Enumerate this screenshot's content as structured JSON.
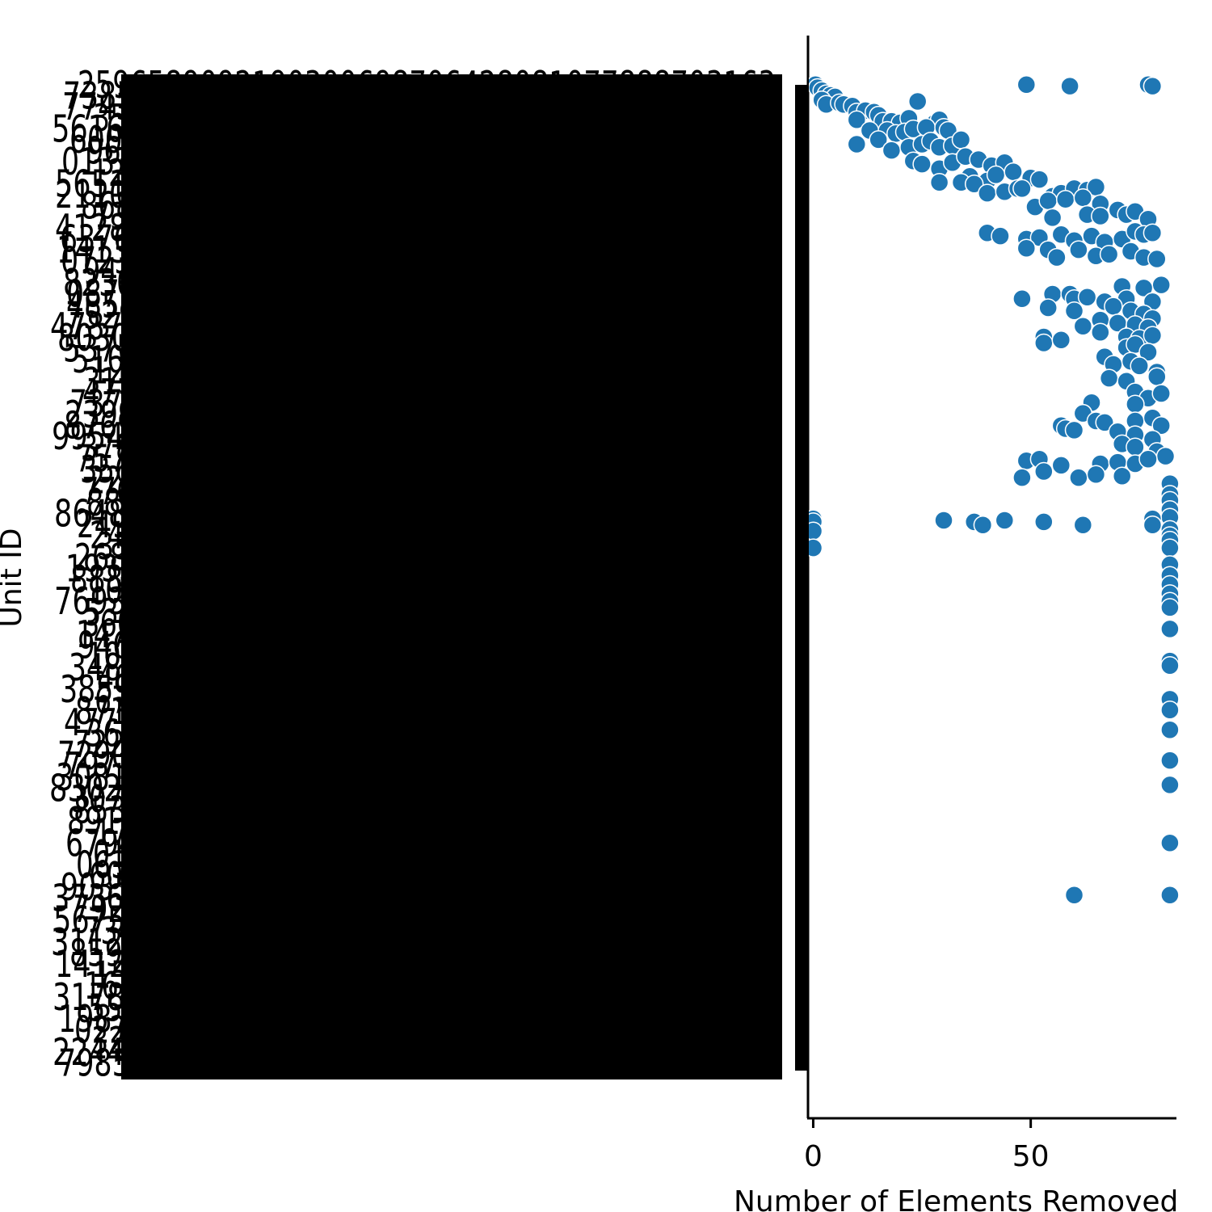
{
  "chart_data": {
    "type": "scatter",
    "title": "",
    "xlabel": "Number of Elements Removed",
    "ylabel": "Unit ID",
    "xlim": [
      -1.2,
      83.5
    ],
    "ylim": [
      -0.5,
      129.5
    ],
    "x_ticks": [
      0,
      50
    ],
    "grid": false,
    "legend": "none",
    "marker_color": "#1f77b4",
    "marker_edge": "#ffffff",
    "y_tick_labels_note": "y-axis categorical Unit ID labels are rendered overlapping and illegible",
    "series": [
      {
        "points": [
          {
            "x": 0.5,
            "y": 0
          },
          {
            "x": 49,
            "y": 0
          },
          {
            "x": 59,
            "y": 0.2
          },
          {
            "x": 77,
            "y": 0
          },
          {
            "x": 78,
            "y": 0.2
          },
          {
            "x": 1,
            "y": 0.4
          },
          {
            "x": 2,
            "y": 0.8
          },
          {
            "x": 3,
            "y": 1.2
          },
          {
            "x": 4,
            "y": 1.4
          },
          {
            "x": 5,
            "y": 1.6
          },
          {
            "x": 2,
            "y": 2
          },
          {
            "x": 3,
            "y": 2.6
          },
          {
            "x": 6,
            "y": 2.4
          },
          {
            "x": 7,
            "y": 2.6
          },
          {
            "x": 9,
            "y": 2.8
          },
          {
            "x": 24,
            "y": 2.2
          },
          {
            "x": 10,
            "y": 3.6
          },
          {
            "x": 12,
            "y": 3.4
          },
          {
            "x": 14,
            "y": 3.6
          },
          {
            "x": 15,
            "y": 4.0
          },
          {
            "x": 10,
            "y": 4.6
          },
          {
            "x": 16,
            "y": 4.8
          },
          {
            "x": 18,
            "y": 4.8
          },
          {
            "x": 20,
            "y": 5.0
          },
          {
            "x": 22,
            "y": 4.4
          },
          {
            "x": 28,
            "y": 5.0
          },
          {
            "x": 29,
            "y": 4.6
          },
          {
            "x": 13,
            "y": 6.0
          },
          {
            "x": 17,
            "y": 6.0
          },
          {
            "x": 19,
            "y": 6.4
          },
          {
            "x": 21,
            "y": 6.2
          },
          {
            "x": 23,
            "y": 5.8
          },
          {
            "x": 26,
            "y": 5.6
          },
          {
            "x": 30,
            "y": 5.6
          },
          {
            "x": 31,
            "y": 6.0
          },
          {
            "x": 10,
            "y": 7.8
          },
          {
            "x": 15,
            "y": 7.2
          },
          {
            "x": 18,
            "y": 8.6
          },
          {
            "x": 22,
            "y": 8.2
          },
          {
            "x": 25,
            "y": 7.8
          },
          {
            "x": 27,
            "y": 7.4
          },
          {
            "x": 29,
            "y": 8.2
          },
          {
            "x": 32,
            "y": 8.0
          },
          {
            "x": 34,
            "y": 7.2
          },
          {
            "x": 23,
            "y": 10
          },
          {
            "x": 25,
            "y": 10.4
          },
          {
            "x": 29,
            "y": 11.0
          },
          {
            "x": 32,
            "y": 10.2
          },
          {
            "x": 35,
            "y": 9.4
          },
          {
            "x": 38,
            "y": 9.8
          },
          {
            "x": 41,
            "y": 10.6
          },
          {
            "x": 44,
            "y": 10.2
          },
          {
            "x": 36,
            "y": 12.0
          },
          {
            "x": 40,
            "y": 12.6
          },
          {
            "x": 42,
            "y": 11.8
          },
          {
            "x": 46,
            "y": 11.4
          },
          {
            "x": 29,
            "y": 12.8
          },
          {
            "x": 34,
            "y": 12.8
          },
          {
            "x": 37,
            "y": 13.0
          },
          {
            "x": 40,
            "y": 14.2
          },
          {
            "x": 44,
            "y": 14.0
          },
          {
            "x": 47,
            "y": 13.6
          },
          {
            "x": 50,
            "y": 12.2
          },
          {
            "x": 52,
            "y": 12.4
          },
          {
            "x": 48,
            "y": 13.6
          },
          {
            "x": 55,
            "y": 14.6
          },
          {
            "x": 57,
            "y": 14.2
          },
          {
            "x": 60,
            "y": 13.6
          },
          {
            "x": 63,
            "y": 13.8
          },
          {
            "x": 65,
            "y": 13.4
          },
          {
            "x": 51,
            "y": 16.0
          },
          {
            "x": 54,
            "y": 15.2
          },
          {
            "x": 58,
            "y": 15.0
          },
          {
            "x": 62,
            "y": 14.8
          },
          {
            "x": 66,
            "y": 15.6
          },
          {
            "x": 55,
            "y": 17.4
          },
          {
            "x": 63,
            "y": 17.0
          },
          {
            "x": 66,
            "y": 17.2
          },
          {
            "x": 70,
            "y": 16.4
          },
          {
            "x": 72,
            "y": 17.0
          },
          {
            "x": 74,
            "y": 16.6
          },
          {
            "x": 77,
            "y": 17.6
          },
          {
            "x": 40,
            "y": 19.4
          },
          {
            "x": 43,
            "y": 19.8
          },
          {
            "x": 49,
            "y": 20.2
          },
          {
            "x": 52,
            "y": 20.0
          },
          {
            "x": 57,
            "y": 19.6
          },
          {
            "x": 60,
            "y": 20.4
          },
          {
            "x": 64,
            "y": 19.8
          },
          {
            "x": 67,
            "y": 20.6
          },
          {
            "x": 71,
            "y": 20.2
          },
          {
            "x": 74,
            "y": 19.2
          },
          {
            "x": 76,
            "y": 19.6
          },
          {
            "x": 78,
            "y": 19.4
          },
          {
            "x": 49,
            "y": 21.4
          },
          {
            "x": 54,
            "y": 21.6
          },
          {
            "x": 56,
            "y": 22.6
          },
          {
            "x": 61,
            "y": 21.6
          },
          {
            "x": 65,
            "y": 22.4
          },
          {
            "x": 68,
            "y": 22.2
          },
          {
            "x": 73,
            "y": 21.8
          },
          {
            "x": 76,
            "y": 22.6
          },
          {
            "x": 79,
            "y": 22.8
          },
          {
            "x": 80,
            "y": 26.2
          },
          {
            "x": 71,
            "y": 26.4
          },
          {
            "x": 76,
            "y": 26.6
          },
          {
            "x": 48,
            "y": 28.0
          },
          {
            "x": 55,
            "y": 27.4
          },
          {
            "x": 59,
            "y": 27.4
          },
          {
            "x": 60,
            "y": 28.0
          },
          {
            "x": 63,
            "y": 27.8
          },
          {
            "x": 67,
            "y": 28.4
          },
          {
            "x": 72,
            "y": 28.0
          },
          {
            "x": 78,
            "y": 28.4
          },
          {
            "x": 54,
            "y": 29.2
          },
          {
            "x": 60,
            "y": 29.6
          },
          {
            "x": 69,
            "y": 29.0
          },
          {
            "x": 73,
            "y": 29.6
          },
          {
            "x": 76,
            "y": 30.0
          },
          {
            "x": 78,
            "y": 30.6
          },
          {
            "x": 62,
            "y": 31.6
          },
          {
            "x": 66,
            "y": 30.8
          },
          {
            "x": 70,
            "y": 31.2
          },
          {
            "x": 74,
            "y": 31.4
          },
          {
            "x": 77,
            "y": 31.8
          },
          {
            "x": 66,
            "y": 32.4
          },
          {
            "x": 72,
            "y": 33.0
          },
          {
            "x": 75,
            "y": 33.2
          },
          {
            "x": 78,
            "y": 32.8
          },
          {
            "x": 53,
            "y": 33.0
          },
          {
            "x": 53,
            "y": 33.8
          },
          {
            "x": 57,
            "y": 33.4
          },
          {
            "x": 72,
            "y": 34.4
          },
          {
            "x": 74,
            "y": 34.0
          },
          {
            "x": 77,
            "y": 35.0
          },
          {
            "x": 67,
            "y": 35.6
          },
          {
            "x": 69,
            "y": 36.6
          },
          {
            "x": 73,
            "y": 36.2
          },
          {
            "x": 75,
            "y": 36.8
          },
          {
            "x": 79,
            "y": 37.6
          },
          {
            "x": 68,
            "y": 38.4
          },
          {
            "x": 72,
            "y": 38.8
          },
          {
            "x": 79,
            "y": 38.2
          },
          {
            "x": 74,
            "y": 40.2
          },
          {
            "x": 77,
            "y": 41.0
          },
          {
            "x": 80,
            "y": 40.4
          },
          {
            "x": 64,
            "y": 41.6
          },
          {
            "x": 74,
            "y": 41.8
          },
          {
            "x": 62,
            "y": 43.0
          },
          {
            "x": 65,
            "y": 44.0
          },
          {
            "x": 67,
            "y": 44.2
          },
          {
            "x": 57,
            "y": 44.6
          },
          {
            "x": 58,
            "y": 45.0
          },
          {
            "x": 60,
            "y": 45.2
          },
          {
            "x": 74,
            "y": 44.0
          },
          {
            "x": 78,
            "y": 43.6
          },
          {
            "x": 80,
            "y": 44.6
          },
          {
            "x": 70,
            "y": 45.4
          },
          {
            "x": 74,
            "y": 45.8
          },
          {
            "x": 78,
            "y": 46.4
          },
          {
            "x": 71,
            "y": 47.0
          },
          {
            "x": 74,
            "y": 47.4
          },
          {
            "x": 79,
            "y": 48.0
          },
          {
            "x": 81,
            "y": 48.6
          },
          {
            "x": 49,
            "y": 49.2
          },
          {
            "x": 52,
            "y": 49.0
          },
          {
            "x": 57,
            "y": 49.8
          },
          {
            "x": 66,
            "y": 49.6
          },
          {
            "x": 70,
            "y": 49.4
          },
          {
            "x": 74,
            "y": 49.6
          },
          {
            "x": 77,
            "y": 49.0
          },
          {
            "x": 48,
            "y": 51.4
          },
          {
            "x": 53,
            "y": 50.6
          },
          {
            "x": 61,
            "y": 51.4
          },
          {
            "x": 65,
            "y": 51.0
          },
          {
            "x": 71,
            "y": 51.2
          },
          {
            "x": 82,
            "y": 52.2
          },
          {
            "x": 82,
            "y": 53.6
          },
          {
            "x": 82,
            "y": 54.4
          },
          {
            "x": 82,
            "y": 55.6
          },
          {
            "x": 82,
            "y": 56.6
          },
          {
            "x": 0,
            "y": 56.8
          },
          {
            "x": 0,
            "y": 57.2
          },
          {
            "x": 30,
            "y": 57.0
          },
          {
            "x": 37,
            "y": 57.2
          },
          {
            "x": 39,
            "y": 57.6
          },
          {
            "x": 44,
            "y": 57.0
          },
          {
            "x": 53,
            "y": 57.2
          },
          {
            "x": 62,
            "y": 57.6
          },
          {
            "x": 78,
            "y": 56.8
          },
          {
            "x": 78,
            "y": 57.6
          },
          {
            "x": 0,
            "y": 58.4
          },
          {
            "x": 82,
            "y": 58.2
          },
          {
            "x": 82,
            "y": 59.0
          },
          {
            "x": 82,
            "y": 59.6
          },
          {
            "x": 0,
            "y": 60.6
          },
          {
            "x": 82,
            "y": 60.6
          },
          {
            "x": 82,
            "y": 62.8
          },
          {
            "x": 82,
            "y": 64.2
          },
          {
            "x": 82,
            "y": 65.4
          },
          {
            "x": 82,
            "y": 66.6
          },
          {
            "x": 82,
            "y": 67.6
          },
          {
            "x": 82,
            "y": 68.4
          },
          {
            "x": 82,
            "y": 71.2
          },
          {
            "x": 82,
            "y": 75.4
          },
          {
            "x": 82,
            "y": 76.0
          },
          {
            "x": 82,
            "y": 80.4
          },
          {
            "x": 82,
            "y": 81.8
          },
          {
            "x": 82,
            "y": 84.4
          },
          {
            "x": 82,
            "y": 88.4
          },
          {
            "x": 82,
            "y": 91.6
          },
          {
            "x": 82,
            "y": 99.2
          },
          {
            "x": 60,
            "y": 106.0
          },
          {
            "x": 82,
            "y": 106.0
          }
        ]
      }
    ]
  }
}
